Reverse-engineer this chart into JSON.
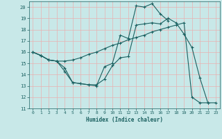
{
  "xlabel": "Humidex (Indice chaleur)",
  "bg_color": "#c8e8e8",
  "grid_color": "#e8b0b0",
  "line_color": "#1a6060",
  "xlim": [
    -0.5,
    23.5
  ],
  "ylim": [
    11,
    20.5
  ],
  "xticks": [
    0,
    1,
    2,
    3,
    4,
    5,
    6,
    7,
    8,
    9,
    10,
    11,
    12,
    13,
    14,
    15,
    16,
    17,
    18,
    19,
    20,
    21,
    22,
    23
  ],
  "yticks": [
    11,
    12,
    13,
    14,
    15,
    16,
    17,
    18,
    19,
    20
  ],
  "curve1_x": [
    0,
    1,
    2,
    3,
    4,
    5,
    6,
    7,
    8,
    9,
    10,
    11,
    12,
    13,
    14,
    15,
    16,
    17,
    18,
    19,
    20,
    21,
    22
  ],
  "curve1_y": [
    16.0,
    15.7,
    15.3,
    15.2,
    14.6,
    13.3,
    13.2,
    13.1,
    13.1,
    13.6,
    14.8,
    15.5,
    15.6,
    18.4,
    18.5,
    18.6,
    18.5,
    19.0,
    18.6,
    17.6,
    16.4,
    13.7,
    11.5
  ],
  "curve2_x": [
    0,
    1,
    2,
    3,
    4,
    5,
    6,
    7,
    8,
    9,
    10,
    11,
    12,
    13,
    14,
    15,
    16,
    17
  ],
  "curve2_y": [
    16.0,
    15.7,
    15.3,
    15.2,
    14.3,
    13.3,
    13.2,
    13.1,
    13.0,
    14.7,
    15.0,
    17.5,
    17.2,
    20.1,
    20.0,
    20.3,
    19.4,
    18.8
  ],
  "curve3_x": [
    0,
    1,
    2,
    3,
    4,
    5,
    6,
    7,
    8,
    9,
    10,
    11,
    12,
    13,
    14,
    15,
    16,
    17,
    18,
    19,
    20,
    21,
    22,
    23
  ],
  "curve3_y": [
    16.0,
    15.7,
    15.3,
    15.2,
    15.2,
    15.3,
    15.5,
    15.8,
    16.0,
    16.3,
    16.6,
    16.8,
    17.1,
    17.3,
    17.5,
    17.8,
    18.0,
    18.2,
    18.4,
    18.6,
    12.0,
    11.5,
    11.5,
    11.5
  ]
}
